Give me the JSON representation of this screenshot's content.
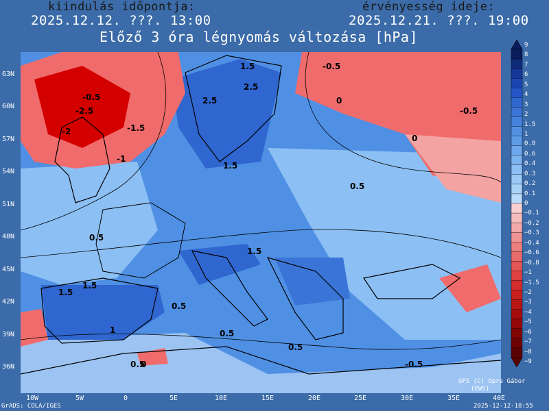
{
  "header": {
    "left_label": "kiindulás időpontja:",
    "left_value": "2025.12.12. ???. 13:00",
    "right_label": "érvényesség ideje:",
    "right_value": "2025.12.21. ???. 19:00",
    "title": "Előző 3 óra légnyomás változása [hPa]"
  },
  "map": {
    "lat_labels": [
      "63N",
      "60N",
      "57N",
      "54N",
      "51N",
      "48N",
      "45N",
      "42N",
      "39N",
      "36N"
    ],
    "lon_labels": [
      "10W",
      "5W",
      "0",
      "5E",
      "10E",
      "15E",
      "20E",
      "25E",
      "30E",
      "35E",
      "40E"
    ],
    "contour_labels": [
      "-2.5",
      "-1.5",
      "-2",
      "-1",
      "-0.5",
      "1.5",
      "2.5",
      "2.5",
      "1.5",
      "-0.5",
      "-0.5",
      "0",
      "0",
      "0.5",
      "0.5",
      "1.5",
      "1.5",
      "1.5",
      "0.5",
      "0.5",
      "0.5",
      "0.5",
      "-0.5",
      "1",
      "0"
    ],
    "colors": {
      "strong_neg": "#d40000",
      "neg": "#f06b6b",
      "weak_neg": "#f4a3a3",
      "pos_light": "#9cc3f2",
      "pos": "#4f90e4",
      "pos_strong": "#2f66cf",
      "pos_deep": "#1e4fb0"
    }
  },
  "colorbar": {
    "labels": [
      "9",
      "8",
      "7",
      "6",
      "5",
      "4",
      "3",
      "2",
      "1.5",
      "1",
      "0.8",
      "0.6",
      "0.4",
      "0.3",
      "0.2",
      "0.1",
      "0",
      "−0.1",
      "−0.2",
      "−0.3",
      "−0.4",
      "−0.6",
      "−0.8",
      "−1",
      "−1.5",
      "−2",
      "−3",
      "−4",
      "−5",
      "−6",
      "−7",
      "−8",
      "−9"
    ],
    "colors": [
      "#0b1c5c",
      "#102a7a",
      "#16379a",
      "#1c45b4",
      "#2556c8",
      "#2f66cf",
      "#3a74d6",
      "#4682dd",
      "#5290e3",
      "#5f9ce8",
      "#6ea8ec",
      "#7db4f0",
      "#8cbff3",
      "#9ac9f5",
      "#a9d2f7",
      "#b9dcf9",
      "#f8d0d0",
      "#f5bcbc",
      "#f2a8a8",
      "#ef9494",
      "#ec8080",
      "#e86b6b",
      "#e35656",
      "#dd4141",
      "#d42d2d",
      "#c81f1f",
      "#b81515",
      "#a50d0d",
      "#920808",
      "#7f0505",
      "#6d0303",
      "#5c0202"
    ]
  },
  "footer": {
    "left": "GrADS: COLA/IGES",
    "right": "2025-12-12-18:55",
    "credit_line1": "GFS (C) Opre Gábor",
    "credit_line2": "(EWS)"
  }
}
